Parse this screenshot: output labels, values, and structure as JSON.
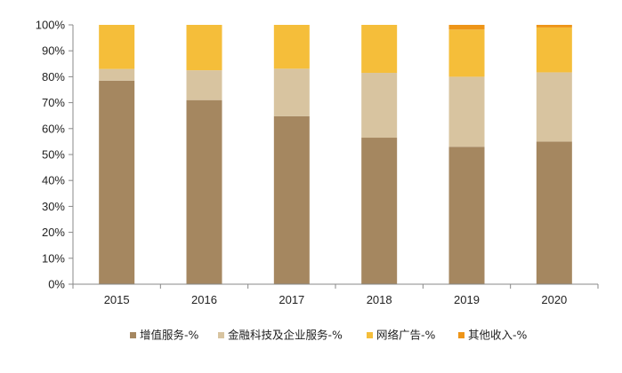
{
  "chart_data": {
    "type": "bar",
    "stacked": true,
    "percent": true,
    "categories": [
      "2015",
      "2016",
      "2017",
      "2018",
      "2019",
      "2020"
    ],
    "series": [
      {
        "name": "增值服务-%",
        "color": "#A58760",
        "values": [
          78.5,
          71.0,
          64.8,
          56.5,
          53.0,
          55.0
        ]
      },
      {
        "name": "金融科技及企业服务-%",
        "color": "#D8C4A0",
        "values": [
          4.5,
          11.5,
          18.3,
          25.0,
          27.0,
          26.7
        ]
      },
      {
        "name": "网络广告-%",
        "color": "#F5BE3A",
        "values": [
          17.0,
          17.5,
          16.9,
          18.5,
          18.2,
          17.3
        ]
      },
      {
        "name": "其他收入-%",
        "color": "#EE9518",
        "values": [
          0.0,
          0.0,
          0.0,
          0.0,
          1.8,
          1.0
        ]
      }
    ],
    "yticks": [
      "0%",
      "10%",
      "20%",
      "30%",
      "40%",
      "50%",
      "60%",
      "70%",
      "80%",
      "90%",
      "100%"
    ],
    "ylim": [
      0,
      100
    ],
    "grid": false,
    "legend": "bottom"
  }
}
